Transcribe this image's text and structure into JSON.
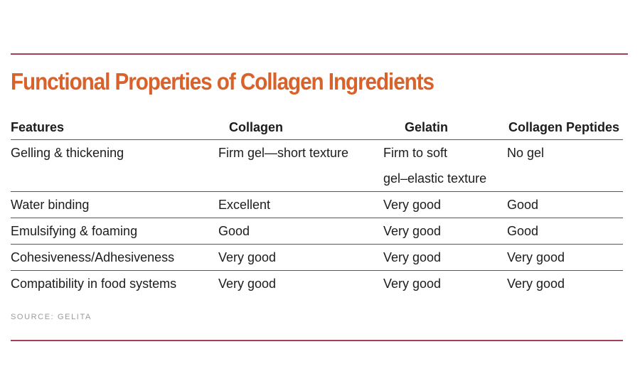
{
  "title": "Functional Properties of Collagen Ingredients",
  "table": {
    "headers": [
      "Features",
      "Collagen",
      "Gelatin",
      "Collagen Peptides"
    ],
    "rows": [
      {
        "feature": "Gelling & thickening",
        "collagen": "Firm gel—short texture",
        "gelatin_line1": "Firm to soft",
        "gelatin_line2": "gel–elastic texture",
        "peptides": "No gel"
      },
      {
        "feature": "Water binding",
        "collagen": "Excellent",
        "gelatin": "Very good",
        "peptides": "Good"
      },
      {
        "feature": "Emulsifying & foaming",
        "collagen": "Good",
        "gelatin": "Very good",
        "peptides": "Good"
      },
      {
        "feature": "Cohesiveness/Adhesiveness",
        "collagen": "Very good",
        "gelatin": "Very good",
        "peptides": "Very good"
      },
      {
        "feature": "Compatibility in food systems",
        "collagen": "Very good",
        "gelatin": "Very good",
        "peptides": "Very good"
      }
    ]
  },
  "source": "SOURCE: GELITA",
  "colors": {
    "title": "#d9622b",
    "rule": "#a4405a",
    "source": "#9a9a9a"
  }
}
